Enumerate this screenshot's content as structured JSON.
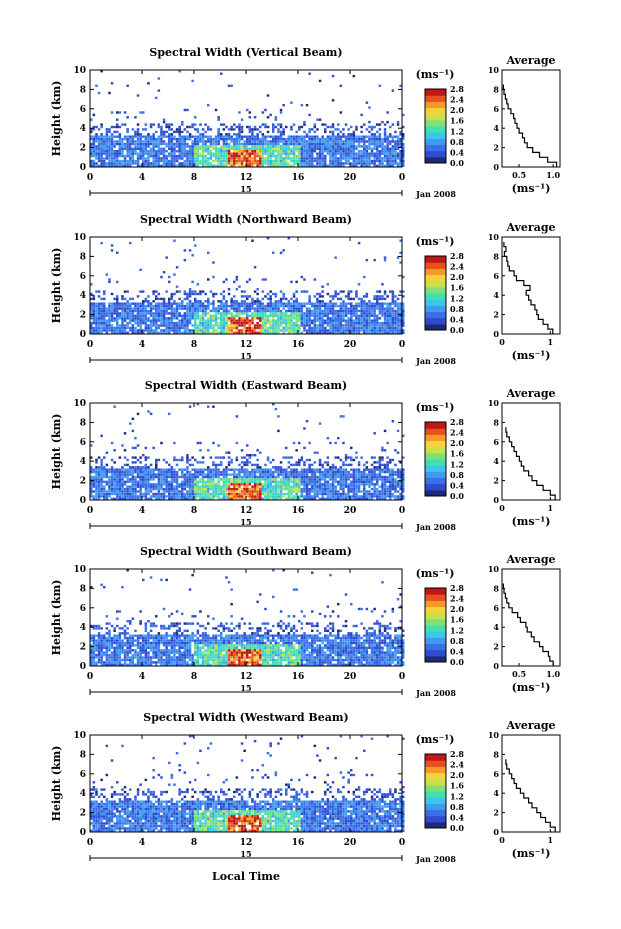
{
  "figure": {
    "xlabel_bottom": "Local Time",
    "date_label": "Jan 2008",
    "day_label": "15",
    "ylabel": "Height (km)",
    "colorbar_unit": "(ms⁻¹)",
    "avg_title": "Average",
    "avg_xlabel": "(ms⁻¹)"
  },
  "chart_data": [
    {
      "type": "heatmap",
      "title": "Spectral Width (Vertical Beam)",
      "x_ticks": [
        "0",
        "4",
        "8",
        "12",
        "16",
        "20",
        "0"
      ],
      "y_ticks": [
        "0",
        "2",
        "4",
        "6",
        "8",
        "10"
      ],
      "xlim": [
        0,
        24
      ],
      "ylim": [
        0,
        10
      ],
      "colorbar_ticks": [
        "2.8",
        "2.4",
        "2.0",
        "1.6",
        "1.2",
        "0.8",
        "0.4",
        "0.0"
      ],
      "colorbar_range": [
        0,
        2.8
      ],
      "profile": {
        "title": "Average",
        "x_ticks": [
          "0.5",
          "1.0"
        ],
        "xlim": [
          0.25,
          1.1
        ],
        "height": [
          0,
          0.5,
          1,
          1.5,
          2,
          2.5,
          3,
          3.5,
          4,
          4.5,
          5,
          5.5,
          6,
          6.5,
          7,
          7.5,
          8
        ],
        "width": [
          1.05,
          0.92,
          0.8,
          0.7,
          0.62,
          0.58,
          0.55,
          0.5,
          0.47,
          0.44,
          0.42,
          0.38,
          0.34,
          0.32,
          0.3,
          0.28,
          0.27
        ]
      }
    },
    {
      "type": "heatmap",
      "title": "Spectral Width (Northward Beam)",
      "x_ticks": [
        "0",
        "4",
        "8",
        "12",
        "16",
        "20",
        "0"
      ],
      "y_ticks": [
        "0",
        "2",
        "4",
        "6",
        "8",
        "10"
      ],
      "xlim": [
        0,
        24
      ],
      "ylim": [
        0,
        10
      ],
      "colorbar_ticks": [
        "2.8",
        "2.4",
        "2.0",
        "1.6",
        "1.2",
        "0.8",
        "0.4",
        "0.0"
      ],
      "colorbar_range": [
        0,
        2.8
      ],
      "profile": {
        "title": "Average",
        "x_ticks": [
          "0",
          "1"
        ],
        "xlim": [
          0,
          1.2
        ],
        "height": [
          0,
          0.5,
          1,
          1.5,
          2,
          2.5,
          3,
          3.5,
          4,
          4.5,
          5,
          5.5,
          6,
          6.5,
          7,
          7.5,
          8,
          8.5,
          9
        ],
        "width": [
          1.05,
          0.95,
          0.85,
          0.75,
          0.72,
          0.68,
          0.6,
          0.55,
          0.5,
          0.58,
          0.45,
          0.3,
          0.25,
          0.15,
          0.12,
          0.1,
          0.05,
          0.08,
          0.04
        ]
      }
    },
    {
      "type": "heatmap",
      "title": "Spectral Width (Eastward Beam)",
      "x_ticks": [
        "0",
        "4",
        "8",
        "12",
        "16",
        "20",
        "0"
      ],
      "y_ticks": [
        "0",
        "2",
        "4",
        "6",
        "8",
        "10"
      ],
      "xlim": [
        0,
        24
      ],
      "ylim": [
        0,
        10
      ],
      "colorbar_ticks": [
        "2.8",
        "2.4",
        "2.0",
        "1.6",
        "1.2",
        "0.8",
        "0.4",
        "0.0"
      ],
      "colorbar_range": [
        0,
        2.8
      ],
      "profile": {
        "title": "Average",
        "x_ticks": [
          "0",
          "1"
        ],
        "xlim": [
          0,
          1.2
        ],
        "height": [
          0,
          0.5,
          1,
          1.5,
          2,
          2.5,
          3,
          3.5,
          4,
          4.5,
          5,
          5.5,
          6,
          6.5,
          7
        ],
        "width": [
          1.1,
          1.0,
          0.85,
          0.72,
          0.62,
          0.55,
          0.45,
          0.4,
          0.36,
          0.3,
          0.25,
          0.2,
          0.15,
          0.1,
          0.08
        ]
      }
    },
    {
      "type": "heatmap",
      "title": "Spectral Width (Southward Beam)",
      "x_ticks": [
        "0",
        "4",
        "8",
        "12",
        "16",
        "20",
        "0"
      ],
      "y_ticks": [
        "0",
        "2",
        "4",
        "6",
        "8",
        "10"
      ],
      "xlim": [
        0,
        24
      ],
      "ylim": [
        0,
        10
      ],
      "colorbar_ticks": [
        "2.8",
        "2.4",
        "2.0",
        "1.6",
        "1.2",
        "0.8",
        "0.4",
        "0.0"
      ],
      "colorbar_range": [
        0,
        2.8
      ],
      "profile": {
        "title": "Average",
        "x_ticks": [
          "0.5",
          "1.0"
        ],
        "xlim": [
          0.25,
          1.1
        ],
        "height": [
          0,
          0.5,
          1,
          1.5,
          2,
          2.5,
          3,
          3.5,
          4,
          4.5,
          5,
          5.5,
          6,
          6.5,
          7,
          7.5,
          8
        ],
        "width": [
          1.0,
          0.95,
          0.93,
          0.85,
          0.8,
          0.72,
          0.68,
          0.62,
          0.6,
          0.52,
          0.48,
          0.4,
          0.35,
          0.32,
          0.3,
          0.28,
          0.27
        ]
      }
    },
    {
      "type": "heatmap",
      "title": "Spectral Width (Westward Beam)",
      "x_ticks": [
        "0",
        "4",
        "8",
        "12",
        "16",
        "20",
        "0"
      ],
      "y_ticks": [
        "0",
        "2",
        "4",
        "6",
        "8",
        "10"
      ],
      "xlim": [
        0,
        24
      ],
      "ylim": [
        0,
        10
      ],
      "colorbar_ticks": [
        "2.8",
        "2.4",
        "2.0",
        "1.6",
        "1.2",
        "0.8",
        "0.4",
        "0.0"
      ],
      "colorbar_range": [
        0,
        2.8
      ],
      "profile": {
        "title": "Average",
        "x_ticks": [
          "0",
          "1"
        ],
        "xlim": [
          0,
          1.2
        ],
        "height": [
          0,
          0.5,
          1,
          1.5,
          2,
          2.5,
          3,
          3.5,
          4,
          4.5,
          5,
          5.5,
          6,
          6.5,
          7
        ],
        "width": [
          1.1,
          1.0,
          0.9,
          0.8,
          0.72,
          0.62,
          0.55,
          0.45,
          0.38,
          0.3,
          0.25,
          0.2,
          0.15,
          0.1,
          0.08
        ]
      }
    }
  ]
}
